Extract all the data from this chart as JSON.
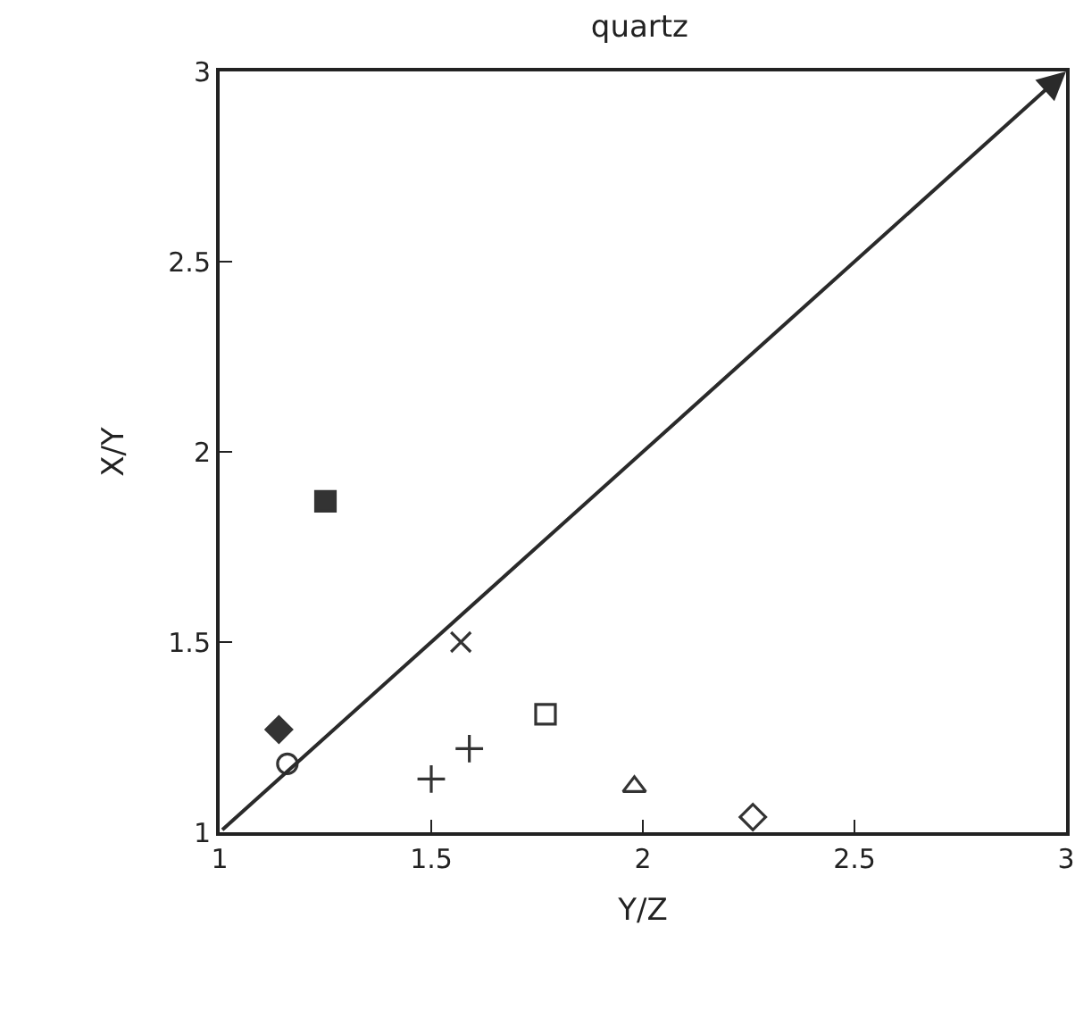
{
  "chart_data": {
    "type": "scatter",
    "title": "quartz",
    "xlabel": "Y/Z",
    "ylabel": "X/Y",
    "xlim": [
      1,
      3
    ],
    "xticks": [
      1,
      1.5,
      2,
      2.5,
      3
    ],
    "ylim": [
      1,
      3
    ],
    "yticks": [
      1,
      1.5,
      2,
      2.5,
      3
    ],
    "grid": false,
    "series": [
      {
        "color": "#333333",
        "x": [
          1.25
        ],
        "values": [
          1.87
        ],
        "marker": "square"
      },
      {
        "color": "#333333",
        "x": [
          1.14
        ],
        "values": [
          1.27
        ],
        "marker": "diamond"
      },
      {
        "color": "#333333",
        "x": [
          1.16
        ],
        "values": [
          1.18
        ],
        "marker": "circle-open"
      },
      {
        "color": "#333333",
        "x": [
          1.57
        ],
        "values": [
          1.5
        ],
        "marker": "x"
      },
      {
        "color": "#333333",
        "x": [
          1.77
        ],
        "values": [
          1.31
        ],
        "marker": "square-open"
      },
      {
        "color": "#333333",
        "x": [
          1.59
        ],
        "values": [
          1.22
        ],
        "marker": "cross"
      },
      {
        "color": "#333333",
        "x": [
          1.5
        ],
        "values": [
          1.14
        ],
        "marker": "cross"
      },
      {
        "color": "#333333",
        "x": [
          1.98
        ],
        "values": [
          1.12
        ],
        "marker": "triangle-open"
      },
      {
        "color": "#333333",
        "x": [
          2.26
        ],
        "values": [
          1.04
        ],
        "marker": "diamond-open"
      }
    ]
  }
}
